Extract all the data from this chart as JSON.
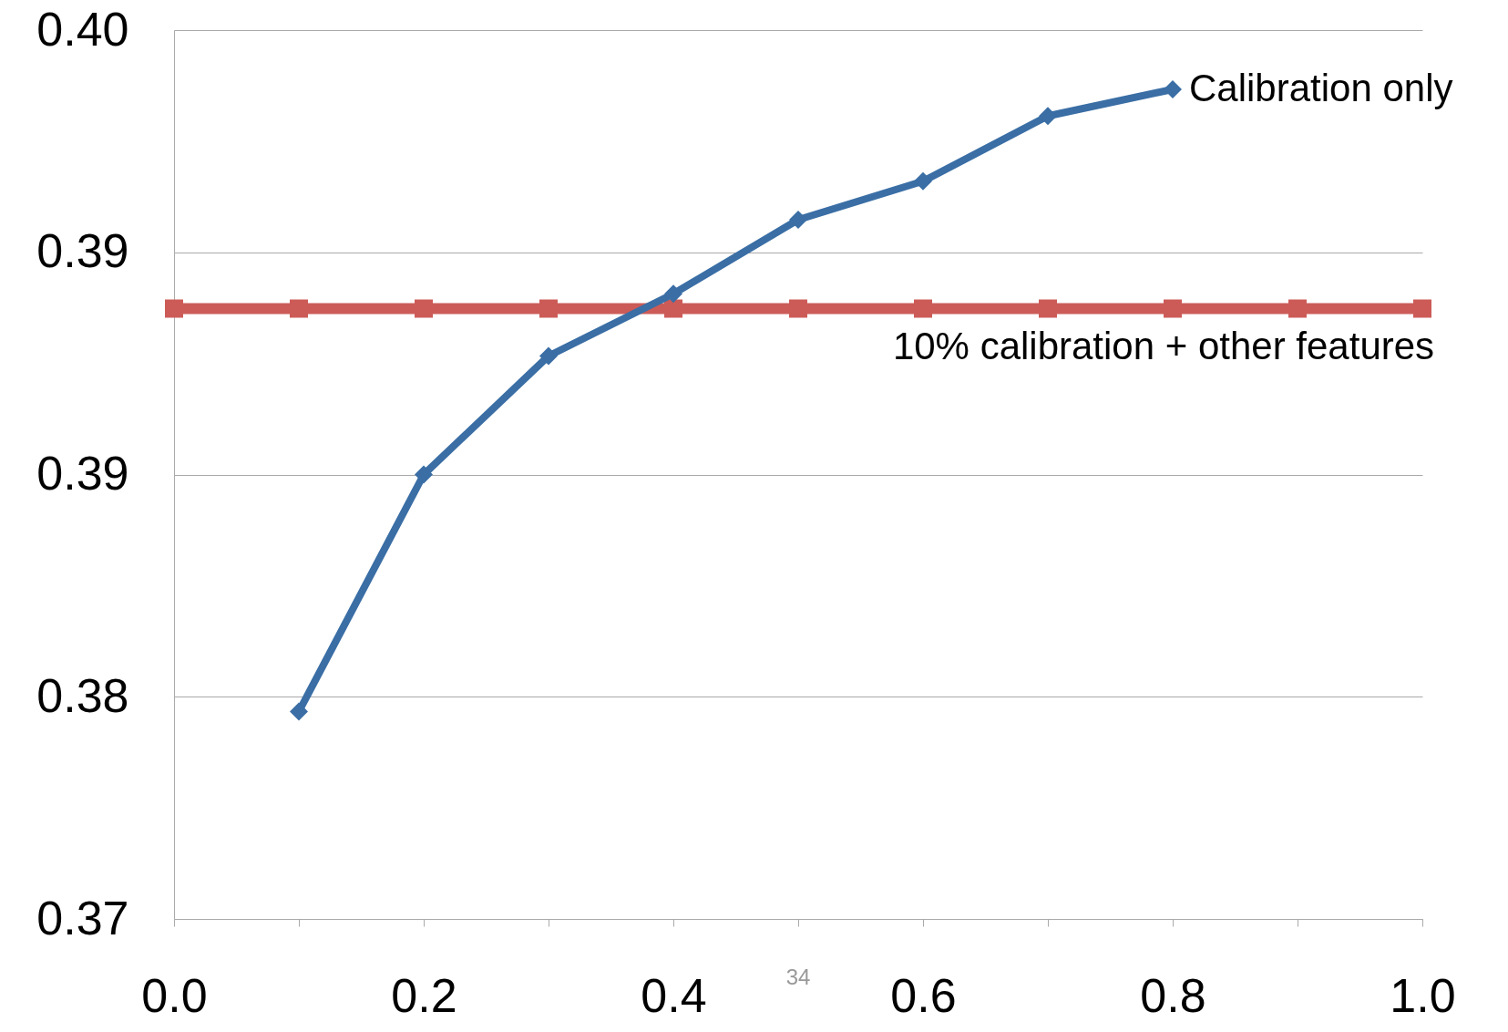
{
  "chart_data": {
    "type": "line",
    "x": [
      0.0,
      0.1,
      0.2,
      0.3,
      0.4,
      0.5,
      0.6,
      0.7,
      0.8,
      0.9,
      1.0
    ],
    "series": [
      {
        "name": "10% calibration + other features",
        "color": "#cc5b57",
        "marker": "square",
        "values": [
          0.3906,
          0.3906,
          0.3906,
          0.3906,
          0.3906,
          0.3906,
          0.3906,
          0.3906,
          0.3906,
          0.3906,
          0.3906
        ]
      },
      {
        "name": "Calibration only",
        "color": "#3a6ea5",
        "marker": "diamond",
        "values": [
          null,
          0.377,
          0.385,
          0.389,
          0.3911,
          0.3936,
          0.3949,
          0.3971,
          0.398,
          null,
          null
        ]
      }
    ],
    "xlim": [
      0.0,
      1.0
    ],
    "xticks": [
      {
        "value": 0.0,
        "label": "0.0"
      },
      {
        "value": 0.1,
        "label": null
      },
      {
        "value": 0.2,
        "label": "0.2"
      },
      {
        "value": 0.3,
        "label": null
      },
      {
        "value": 0.4,
        "label": "0.4"
      },
      {
        "value": 0.5,
        "label": null
      },
      {
        "value": 0.6,
        "label": "0.6"
      },
      {
        "value": 0.7,
        "label": null
      },
      {
        "value": 0.8,
        "label": "0.8"
      },
      {
        "value": 0.9,
        "label": null
      },
      {
        "value": 1.0,
        "label": "1.0"
      }
    ],
    "ylim": [
      0.37,
      0.4
    ],
    "yticks": [
      {
        "value": 0.37,
        "label": "0.37"
      },
      {
        "value": 0.3775,
        "label": "0.38"
      },
      {
        "value": 0.385,
        "label": "0.39"
      },
      {
        "value": 0.3925,
        "label": "0.39"
      },
      {
        "value": 0.4,
        "label": "0.40"
      }
    ],
    "grid": "y",
    "annotations": [
      "34"
    ]
  }
}
